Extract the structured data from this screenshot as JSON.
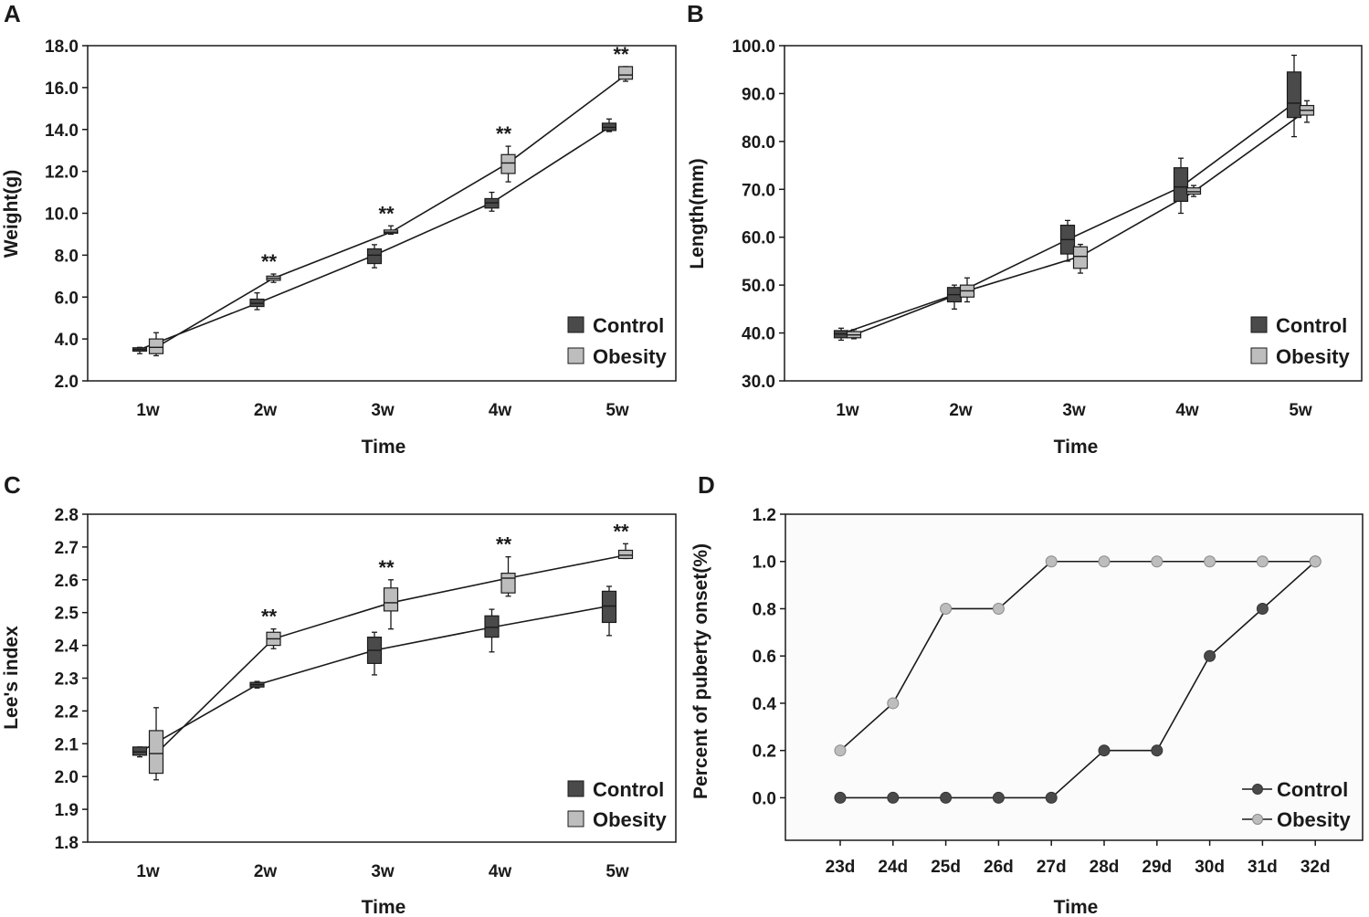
{
  "chart_data": [
    {
      "panel": "A",
      "type": "box",
      "title": "",
      "xlabel": "Time",
      "ylabel": "Weight(g)",
      "categories": [
        "1w",
        "2w",
        "3w",
        "4w",
        "5w"
      ],
      "ylim": [
        2.0,
        18.0
      ],
      "yticks": [
        "2.0",
        "4.0",
        "6.0",
        "8.0",
        "10.0",
        "12.0",
        "14.0",
        "16.0",
        "18.0"
      ],
      "colors": {
        "Control": "#4a4a4a",
        "Obesity": "#bdbdbd"
      },
      "series": [
        {
          "name": "Control",
          "legend": "Control",
          "boxes": [
            {
              "min": 3.3,
              "q1": 3.42,
              "median": 3.5,
              "q3": 3.58,
              "max": 3.6
            },
            {
              "min": 5.4,
              "q1": 5.55,
              "median": 5.7,
              "q3": 5.9,
              "max": 6.2
            },
            {
              "min": 7.4,
              "q1": 7.6,
              "median": 8.0,
              "q3": 8.3,
              "max": 8.5
            },
            {
              "min": 10.1,
              "q1": 10.25,
              "median": 10.5,
              "q3": 10.7,
              "max": 11.0
            },
            {
              "min": 13.9,
              "q1": 13.95,
              "median": 14.1,
              "q3": 14.3,
              "max": 14.5
            }
          ]
        },
        {
          "name": "Obesity",
          "legend": "Obesity",
          "boxes": [
            {
              "min": 3.2,
              "q1": 3.3,
              "median": 3.6,
              "q3": 4.0,
              "max": 4.3
            },
            {
              "min": 6.7,
              "q1": 6.8,
              "median": 6.9,
              "q3": 7.0,
              "max": 7.1
            },
            {
              "min": 9.0,
              "q1": 9.05,
              "median": 9.1,
              "q3": 9.2,
              "max": 9.4
            },
            {
              "min": 11.5,
              "q1": 11.9,
              "median": 12.4,
              "q3": 12.8,
              "max": 13.2
            },
            {
              "min": 16.3,
              "q1": 16.4,
              "median": 16.6,
              "q3": 17.0,
              "max": 17.0
            }
          ]
        }
      ],
      "annotations": [
        {
          "category": "2w",
          "text": "**"
        },
        {
          "category": "3w",
          "text": "**"
        },
        {
          "category": "4w",
          "text": "**"
        },
        {
          "category": "5w",
          "text": "**"
        }
      ],
      "legend_position": "bottom-right",
      "grid": false
    },
    {
      "panel": "B",
      "type": "box",
      "title": "",
      "xlabel": "Time",
      "ylabel": "Length(mm)",
      "categories": [
        "1w",
        "2w",
        "3w",
        "4w",
        "5w"
      ],
      "ylim": [
        30.0,
        100.0
      ],
      "yticks": [
        "30.0",
        "40.0",
        "50.0",
        "60.0",
        "70.0",
        "80.0",
        "90.0",
        "100.0"
      ],
      "colors": {
        "Control": "#4a4a4a",
        "Obesity": "#bdbdbd"
      },
      "series": [
        {
          "name": "Control",
          "legend": "Control",
          "boxes": [
            {
              "min": 38.5,
              "q1": 39.0,
              "median": 39.8,
              "q3": 40.5,
              "max": 41.0
            },
            {
              "min": 45.0,
              "q1": 46.5,
              "median": 48.0,
              "q3": 49.5,
              "max": 50.0
            },
            {
              "min": 55.0,
              "q1": 56.5,
              "median": 59.5,
              "q3": 62.5,
              "max": 63.5
            },
            {
              "min": 65.0,
              "q1": 67.5,
              "median": 70.5,
              "q3": 74.5,
              "max": 76.5
            },
            {
              "min": 81.0,
              "q1": 85.0,
              "median": 88.0,
              "q3": 94.5,
              "max": 98.0
            }
          ]
        },
        {
          "name": "Obesity",
          "legend": "Obesity",
          "boxes": [
            {
              "min": 38.8,
              "q1": 39.0,
              "median": 39.6,
              "q3": 40.3,
              "max": 40.7
            },
            {
              "min": 46.5,
              "q1": 47.5,
              "median": 48.8,
              "q3": 50.0,
              "max": 51.5
            },
            {
              "min": 52.5,
              "q1": 53.5,
              "median": 56.0,
              "q3": 58.0,
              "max": 58.5
            },
            {
              "min": 68.5,
              "q1": 69.0,
              "median": 69.5,
              "q3": 70.3,
              "max": 70.8
            },
            {
              "min": 84.0,
              "q1": 85.5,
              "median": 86.5,
              "q3": 87.5,
              "max": 88.5
            }
          ]
        }
      ],
      "annotations": [],
      "legend_position": "bottom-right",
      "grid": false
    },
    {
      "panel": "C",
      "type": "box",
      "title": "",
      "xlabel": "Time",
      "ylabel": "Lee's index",
      "categories": [
        "1w",
        "2w",
        "3w",
        "4w",
        "5w"
      ],
      "ylim": [
        1.8,
        2.8
      ],
      "yticks": [
        "1.8",
        "1.9",
        "2.0",
        "2.1",
        "2.2",
        "2.3",
        "2.4",
        "2.5",
        "2.6",
        "2.7",
        "2.8"
      ],
      "colors": {
        "Control": "#4a4a4a",
        "Obesity": "#bdbdbd"
      },
      "series": [
        {
          "name": "Control",
          "legend": "Control",
          "boxes": [
            {
              "min": 2.06,
              "q1": 2.065,
              "median": 2.075,
              "q3": 2.09,
              "max": 2.09
            },
            {
              "min": 2.27,
              "q1": 2.273,
              "median": 2.28,
              "q3": 2.287,
              "max": 2.29
            },
            {
              "min": 2.31,
              "q1": 2.345,
              "median": 2.385,
              "q3": 2.425,
              "max": 2.44
            },
            {
              "min": 2.38,
              "q1": 2.425,
              "median": 2.455,
              "q3": 2.49,
              "max": 2.51
            },
            {
              "min": 2.43,
              "q1": 2.47,
              "median": 2.52,
              "q3": 2.565,
              "max": 2.58
            }
          ]
        },
        {
          "name": "Obesity",
          "legend": "Obesity",
          "boxes": [
            {
              "min": 1.99,
              "q1": 2.01,
              "median": 2.07,
              "q3": 2.14,
              "max": 2.21
            },
            {
              "min": 2.39,
              "q1": 2.4,
              "median": 2.42,
              "q3": 2.44,
              "max": 2.45
            },
            {
              "min": 2.45,
              "q1": 2.505,
              "median": 2.53,
              "q3": 2.575,
              "max": 2.6
            },
            {
              "min": 2.55,
              "q1": 2.56,
              "median": 2.605,
              "q3": 2.62,
              "max": 2.67
            },
            {
              "min": 2.665,
              "q1": 2.665,
              "median": 2.675,
              "q3": 2.69,
              "max": 2.71
            }
          ]
        }
      ],
      "annotations": [
        {
          "category": "2w",
          "text": "**"
        },
        {
          "category": "3w",
          "text": "**"
        },
        {
          "category": "4w",
          "text": "**"
        },
        {
          "category": "5w",
          "text": "**"
        }
      ],
      "legend_position": "bottom-right",
      "grid": false
    },
    {
      "panel": "D",
      "type": "line",
      "title": "",
      "xlabel": "Time",
      "ylabel": "Percent of puberty onset(%)",
      "categories": [
        "23d",
        "24d",
        "25d",
        "26d",
        "27d",
        "28d",
        "29d",
        "30d",
        "31d",
        "32d"
      ],
      "ylim": [
        -0.18,
        1.2
      ],
      "yticks": [
        "0.0",
        "0.2",
        "0.4",
        "0.6",
        "0.8",
        "1.0",
        "1.2"
      ],
      "colors": {
        "Control": "#4a4a4a",
        "Obesity": "#bdbdbd"
      },
      "series": [
        {
          "name": "Control",
          "legend": "Control",
          "values": [
            0,
            0,
            0,
            0,
            0,
            0.2,
            0.2,
            0.6,
            0.8,
            1.0
          ]
        },
        {
          "name": "Obesity",
          "legend": "Obesity",
          "values": [
            0.2,
            0.4,
            0.8,
            0.8,
            1.0,
            1.0,
            1.0,
            1.0,
            1.0,
            1.0
          ]
        }
      ],
      "legend_position": "bottom-right",
      "grid": false
    }
  ]
}
